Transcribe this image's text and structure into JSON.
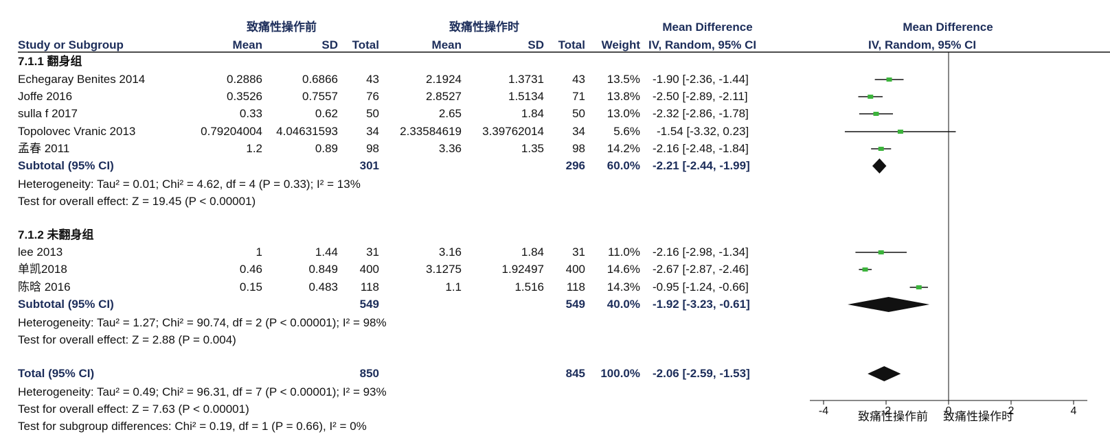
{
  "header": {
    "group_experimental": "致痛性操作前",
    "group_control": "致痛性操作时",
    "col_study": "Study or Subgroup",
    "col_mean": "Mean",
    "col_sd": "SD",
    "col_total": "Total",
    "col_weight": "Weight",
    "col_md": "Mean Difference",
    "col_md_method": "IV, Random, 95% CI",
    "plot_md": "Mean Difference",
    "plot_md_method": "IV, Random, 95% CI"
  },
  "subgroups": [
    {
      "title": "7.1.1 翻身组",
      "studies": [
        {
          "name": "Echegaray Benites 2014",
          "m1": "0.2886",
          "sd1": "0.6866",
          "n1": "43",
          "m2": "2.1924",
          "sd2": "1.3731",
          "n2": "43",
          "weight": "13.5%",
          "ci": "-1.90 [-2.36, -1.44]"
        },
        {
          "name": "Joffe 2016",
          "m1": "0.3526",
          "sd1": "0.7557",
          "n1": "76",
          "m2": "2.8527",
          "sd2": "1.5134",
          "n2": "71",
          "weight": "13.8%",
          "ci": "-2.50 [-2.89, -2.11]"
        },
        {
          "name": "sulla f 2017",
          "m1": "0.33",
          "sd1": "0.62",
          "n1": "50",
          "m2": "2.65",
          "sd2": "1.84",
          "n2": "50",
          "weight": "13.0%",
          "ci": "-2.32 [-2.86, -1.78]"
        },
        {
          "name": "Topolovec Vranic 2013",
          "m1": "0.79204004",
          "sd1": "4.04631593",
          "n1": "34",
          "m2": "2.33584619",
          "sd2": "3.39762014",
          "n2": "34",
          "weight": "5.6%",
          "ci": "-1.54 [-3.32, 0.23]"
        },
        {
          "name": "孟春 2011",
          "m1": "1.2",
          "sd1": "0.89",
          "n1": "98",
          "m2": "3.36",
          "sd2": "1.35",
          "n2": "98",
          "weight": "14.2%",
          "ci": "-2.16 [-2.48, -1.84]"
        }
      ],
      "subtotal": {
        "label": "Subtotal (95% CI)",
        "n1": "301",
        "n2": "296",
        "weight": "60.0%",
        "ci": "-2.21 [-2.44, -1.99]"
      },
      "heterogeneity": "Heterogeneity: Tau² = 0.01; Chi² = 4.62, df = 4 (P = 0.33); I² = 13%",
      "overall": "Test for overall effect: Z = 19.45 (P < 0.00001)"
    },
    {
      "title": "7.1.2 未翻身组",
      "studies": [
        {
          "name": "lee 2013",
          "m1": "1",
          "sd1": "1.44",
          "n1": "31",
          "m2": "3.16",
          "sd2": "1.84",
          "n2": "31",
          "weight": "11.0%",
          "ci": "-2.16 [-2.98, -1.34]"
        },
        {
          "name": "单凯2018",
          "m1": "0.46",
          "sd1": "0.849",
          "n1": "400",
          "m2": "3.1275",
          "sd2": "1.92497",
          "n2": "400",
          "weight": "14.6%",
          "ci": "-2.67 [-2.87, -2.46]"
        },
        {
          "name": "陈晗 2016",
          "m1": "0.15",
          "sd1": "0.483",
          "n1": "118",
          "m2": "1.1",
          "sd2": "1.516",
          "n2": "118",
          "weight": "14.3%",
          "ci": "-0.95 [-1.24, -0.66]"
        }
      ],
      "subtotal": {
        "label": "Subtotal (95% CI)",
        "n1": "549",
        "n2": "549",
        "weight": "40.0%",
        "ci": "-1.92 [-3.23, -0.61]"
      },
      "heterogeneity": "Heterogeneity: Tau² = 1.27; Chi² = 90.74, df = 2 (P < 0.00001); I² = 98%",
      "overall": "Test for overall effect: Z = 2.88 (P = 0.004)"
    }
  ],
  "total": {
    "label": "Total (95% CI)",
    "n1": "850",
    "n2": "845",
    "weight": "100.0%",
    "ci": "-2.06 [-2.59, -1.53]",
    "heterogeneity": "Heterogeneity: Tau² = 0.49; Chi² = 96.31, df = 7 (P < 0.00001); I² = 93%",
    "overall": "Test for overall effect: Z = 7.63 (P < 0.00001)",
    "subgroup_diff": "Test for subgroup differences: Chi² = 0.19, df = 1 (P = 0.66), I² = 0%"
  },
  "axis": {
    "favours_left": "致痛性操作前",
    "favours_right": "致痛性操作时"
  },
  "colors": {
    "header": "#1c2d5a",
    "point": "#3cb43c",
    "line": "#111111"
  },
  "chart_data": {
    "type": "forest",
    "x_range": [
      -4,
      4
    ],
    "ticks": [
      "-4",
      "-2",
      "0",
      "2",
      "4"
    ],
    "tick_values": [
      -4,
      -2,
      0,
      2,
      4
    ],
    "studies": [
      {
        "name": "Echegaray Benites 2014",
        "est": -1.9,
        "lo": -2.36,
        "hi": -1.44
      },
      {
        "name": "Joffe 2016",
        "est": -2.5,
        "lo": -2.89,
        "hi": -2.11
      },
      {
        "name": "sulla f 2017",
        "est": -2.32,
        "lo": -2.86,
        "hi": -1.78
      },
      {
        "name": "Topolovec Vranic 2013",
        "est": -1.54,
        "lo": -3.32,
        "hi": 0.23
      },
      {
        "name": "孟春 2011",
        "est": -2.16,
        "lo": -2.48,
        "hi": -1.84
      },
      {
        "name": "lee 2013",
        "est": -2.16,
        "lo": -2.98,
        "hi": -1.34
      },
      {
        "name": "单凯2018",
        "est": -2.67,
        "lo": -2.87,
        "hi": -2.46
      },
      {
        "name": "陈晗 2016",
        "est": -0.95,
        "lo": -1.24,
        "hi": -0.66
      }
    ],
    "diamonds": [
      {
        "name": "Subtotal 7.1.1",
        "est": -2.21,
        "lo": -2.44,
        "hi": -1.99
      },
      {
        "name": "Subtotal 7.1.2",
        "est": -1.92,
        "lo": -3.23,
        "hi": -0.61
      },
      {
        "name": "Total",
        "est": -2.06,
        "lo": -2.59,
        "hi": -1.53
      }
    ]
  }
}
